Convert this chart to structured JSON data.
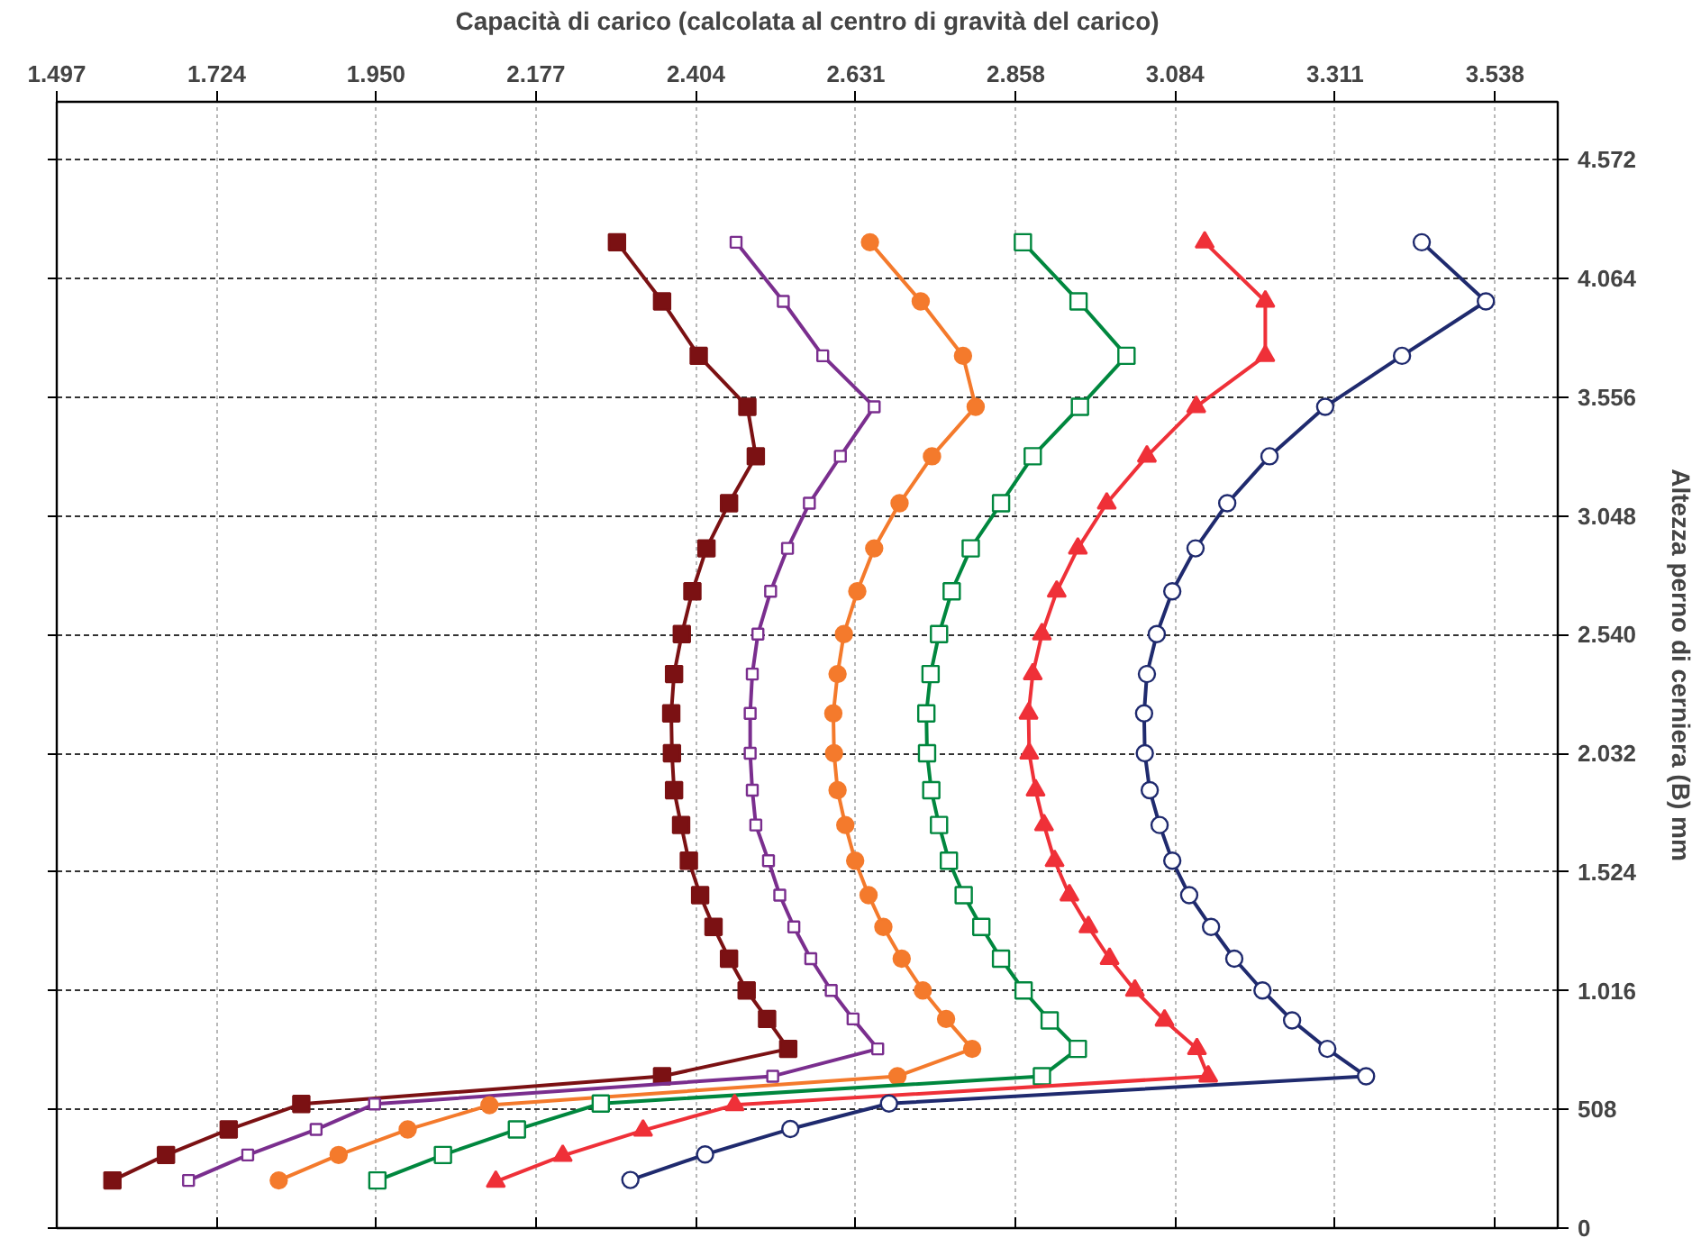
{
  "chart_data": {
    "type": "line",
    "xlabel": "Capacità di carico (calcolata al centro di gravità del carico)",
    "ylabel": "Altezza perno di cerniera (B) mm",
    "xlim": [
      1497,
      3627
    ],
    "ylim": [
      0,
      4820
    ],
    "xticks": [
      {
        "value": 1497,
        "label": "1.497"
      },
      {
        "value": 1724,
        "label": "1.724"
      },
      {
        "value": 1950,
        "label": "1.950"
      },
      {
        "value": 2177,
        "label": "2.177"
      },
      {
        "value": 2404,
        "label": "2.404"
      },
      {
        "value": 2631,
        "label": "2.631"
      },
      {
        "value": 2858,
        "label": "2.858"
      },
      {
        "value": 3084,
        "label": "3.084"
      },
      {
        "value": 3311,
        "label": "3.311"
      },
      {
        "value": 3538,
        "label": "3.538"
      }
    ],
    "yticks": [
      0,
      {
        "value": 508,
        "label": "508"
      },
      {
        "value": 1016,
        "label": "1.016"
      },
      {
        "value": 1524,
        "label": "1.524"
      },
      {
        "value": 2032,
        "label": "2.032"
      },
      {
        "value": 2540,
        "label": "2.540"
      },
      {
        "value": 3048,
        "label": "3.048"
      },
      {
        "value": 3556,
        "label": "3.556"
      },
      {
        "value": 4064,
        "label": "4.064"
      },
      {
        "value": 4572,
        "label": "4.572"
      }
    ],
    "grid": true,
    "line_style": "solid",
    "series": [
      {
        "color": "#7b1113",
        "marker": "square",
        "x": [
          2292,
          2356,
          2408,
          2477,
          2489,
          2451,
          2419,
          2399,
          2384,
          2373,
          2369,
          2370,
          2373,
          2383,
          2394,
          2410,
          2429,
          2451,
          2476,
          2505,
          2535,
          2356,
          1844,
          1741,
          1652,
          1576
        ],
        "values": [
          4219,
          3966,
          3733,
          3515,
          3303,
          3102,
          2909,
          2725,
          2542,
          2371,
          2203,
          2032,
          1874,
          1725,
          1572,
          1425,
          1289,
          1153,
          1017,
          895,
          767,
          650,
          531,
          422,
          313,
          204
        ]
      },
      {
        "color": "#7a2e8e",
        "marker": "square",
        "x": [
          2461,
          2528,
          2584,
          2657,
          2609,
          2565,
          2534,
          2510,
          2492,
          2484,
          2481,
          2481,
          2484,
          2489,
          2507,
          2523,
          2543,
          2567,
          2596,
          2627,
          2662,
          2513,
          1948,
          1865,
          1768,
          1684
        ],
        "values": [
          4219,
          3966,
          3733,
          3515,
          3303,
          3102,
          2909,
          2725,
          2542,
          2371,
          2203,
          2032,
          1874,
          1725,
          1572,
          1425,
          1289,
          1153,
          1017,
          895,
          767,
          650,
          531,
          422,
          313,
          204
        ]
      },
      {
        "color": "#f47a2c",
        "marker": "circle",
        "x": [
          2651,
          2723,
          2783,
          2801,
          2739,
          2693,
          2657,
          2633,
          2614,
          2605,
          2599,
          2600,
          2605,
          2616,
          2630,
          2649,
          2670,
          2696,
          2726,
          2759,
          2796,
          2690,
          2111,
          1995,
          1897,
          1812
        ],
        "values": [
          4219,
          3966,
          3733,
          3515,
          3303,
          3102,
          2909,
          2725,
          2542,
          2371,
          2203,
          2032,
          1874,
          1725,
          1572,
          1425,
          1289,
          1153,
          1017,
          895,
          767,
          650,
          526,
          422,
          313,
          204
        ]
      },
      {
        "color": "#00873e",
        "marker": "square",
        "x": [
          2868,
          2947,
          3015,
          2949,
          2882,
          2837,
          2794,
          2767,
          2749,
          2737,
          2731,
          2732,
          2738,
          2749,
          2763,
          2784,
          2809,
          2837,
          2869,
          2906,
          2946,
          2895,
          2269,
          2150,
          2045,
          1952
        ],
        "values": [
          4219,
          3966,
          3733,
          3515,
          3303,
          3102,
          2909,
          2725,
          2542,
          2371,
          2203,
          2032,
          1874,
          1725,
          1572,
          1425,
          1289,
          1153,
          1017,
          889,
          767,
          650,
          533,
          422,
          313,
          204
        ]
      },
      {
        "color": "#ef3038",
        "marker": "triangle",
        "x": [
          3126,
          3212,
          3212,
          3114,
          3044,
          2987,
          2946,
          2916,
          2895,
          2882,
          2876,
          2877,
          2886,
          2898,
          2913,
          2934,
          2961,
          2991,
          3027,
          3069,
          3115,
          3131,
          2459,
          2329,
          2215,
          2120
        ],
        "values": [
          4219,
          3966,
          3733,
          3515,
          3303,
          3102,
          2909,
          2725,
          2542,
          2371,
          2203,
          2032,
          1874,
          1725,
          1572,
          1425,
          1289,
          1153,
          1017,
          889,
          767,
          650,
          527,
          418,
          310,
          199
        ]
      },
      {
        "color": "#1f2a6e",
        "marker": "circle",
        "x": [
          3434,
          3525,
          3406,
          3297,
          3218,
          3158,
          3113,
          3080,
          3058,
          3044,
          3040,
          3041,
          3048,
          3062,
          3080,
          3104,
          3135,
          3168,
          3208,
          3250,
          3300,
          3355,
          2678,
          2538,
          2417,
          2311
        ],
        "values": [
          4219,
          3966,
          3733,
          3515,
          3303,
          3102,
          2909,
          2725,
          2542,
          2371,
          2203,
          2032,
          1874,
          1725,
          1572,
          1425,
          1289,
          1153,
          1017,
          889,
          767,
          650,
          533,
          424,
          315,
          206
        ]
      }
    ]
  }
}
